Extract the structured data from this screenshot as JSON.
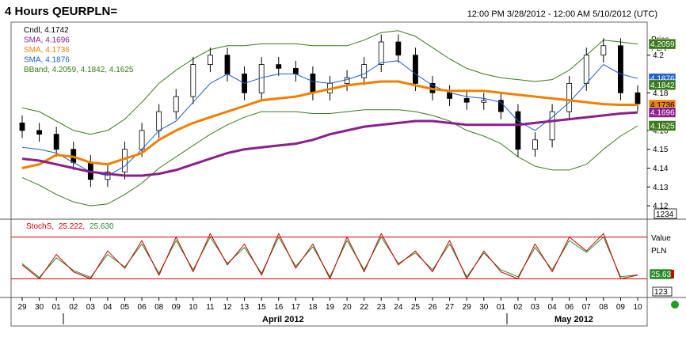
{
  "title": "4 Hours QEURPLN=",
  "date_range": "12:00 PM 3/28/2012 - 12:00 AM 5/10/2012 (UTC)",
  "price_panel": {
    "header_lines": [
      "Price",
      "PLN"
    ],
    "legend": [
      {
        "text": "Cndl, 4.1742",
        "color": "#000000"
      },
      {
        "text": "SMA, 4.1696",
        "color": "#8b1f8b"
      },
      {
        "text": "SMA, 4.1736",
        "color": "#f08000"
      },
      {
        "text": "SMA, 4.1876",
        "color": "#1f5fd0"
      },
      {
        "text": "BBand, 4.2059, 4.1842, 4.1625",
        "color": "#3a7a1a"
      }
    ],
    "y_ticks": [
      "4.2",
      "4.18",
      "4.16",
      "4.15",
      "4.14",
      "4.13",
      "4.12"
    ],
    "y_box": "1234",
    "badges": [
      {
        "text": "4.2059",
        "bg": "#3a7a1a",
        "fg": "#ffffff"
      },
      {
        "text": "4.1876",
        "bg": "#1f5fd0",
        "fg": "#ffffff"
      },
      {
        "text": "4.1842",
        "bg": "#3a7a1a",
        "fg": "#ffffff"
      },
      {
        "text": "4.1736",
        "bg": "#f08000",
        "fg": "#000000"
      },
      {
        "text": "4.1696",
        "bg": "#8b1f8b",
        "fg": "#ffffff"
      },
      {
        "text": "4.1625",
        "bg": "#3a7a1a",
        "fg": "#ffffff"
      }
    ]
  },
  "stoch_panel": {
    "header_lines": [
      "Value",
      "PLN"
    ],
    "legend_prefix": "StochS,",
    "legend_k": "25.222,",
    "legend_d": "25.630",
    "badge": "25.63",
    "y_box": "123"
  },
  "x_axis": {
    "day_labels": [
      "29",
      "30",
      "01",
      "02",
      "03",
      "04",
      "05",
      "06",
      "08",
      "09",
      "10",
      "11",
      "12",
      "13",
      "15",
      "16",
      "17",
      "18",
      "19",
      "20",
      "22",
      "23",
      "24",
      "25",
      "26",
      "27",
      "29",
      "30",
      "01",
      "02",
      "03",
      "04",
      "06",
      "07",
      "08",
      "09",
      "10"
    ],
    "months": [
      "April 2012",
      "May 2012"
    ]
  },
  "colors": {
    "sma_purple": "#8b1f8b",
    "sma_orange": "#f08000",
    "sma_blue": "#1f5fd0",
    "bband_green": "#3a7a1a",
    "stoch_k": "#cc0000",
    "stoch_d": "#2a8a2a",
    "stoch_band": "#cc0000",
    "status_dot": "#1aa01a"
  },
  "chart_data": {
    "type": "line",
    "title": "4 Hours QEURPLN=",
    "ylim": [
      4.115,
      4.215
    ],
    "x": [
      "29",
      "30",
      "01",
      "02",
      "03",
      "04",
      "05",
      "06",
      "08",
      "09",
      "10",
      "11",
      "12",
      "13",
      "15",
      "16",
      "17",
      "18",
      "19",
      "20",
      "22",
      "23",
      "24",
      "25",
      "26",
      "27",
      "29",
      "30",
      "01",
      "02",
      "03",
      "04",
      "06",
      "07",
      "08",
      "09",
      "10"
    ],
    "series": [
      {
        "name": "SMA, 4.1696",
        "values": [
          4.145,
          4.144,
          4.142,
          4.14,
          4.138,
          4.137,
          4.136,
          4.136,
          4.137,
          4.139,
          4.142,
          4.145,
          4.148,
          4.15,
          4.151,
          4.152,
          4.153,
          4.155,
          4.158,
          4.16,
          4.162,
          4.163,
          4.164,
          4.165,
          4.165,
          4.164,
          4.163,
          4.163,
          4.163,
          4.163,
          4.164,
          4.165,
          4.166,
          4.167,
          4.168,
          4.169,
          4.1696
        ]
      },
      {
        "name": "SMA, 4.1736",
        "values": [
          4.14,
          4.142,
          4.147,
          4.146,
          4.143,
          4.142,
          4.145,
          4.148,
          4.155,
          4.16,
          4.164,
          4.167,
          4.17,
          4.173,
          4.176,
          4.177,
          4.178,
          4.18,
          4.182,
          4.184,
          4.185,
          4.186,
          4.186,
          4.184,
          4.182,
          4.181,
          4.181,
          4.181,
          4.18,
          4.179,
          4.178,
          4.177,
          4.176,
          4.175,
          4.174,
          4.1736,
          4.1736
        ]
      },
      {
        "name": "SMA, 4.1876",
        "values": [
          4.151,
          4.15,
          4.148,
          4.143,
          4.138,
          4.136,
          4.141,
          4.15,
          4.16,
          4.165,
          4.175,
          4.185,
          4.19,
          4.185,
          4.188,
          4.19,
          4.19,
          4.186,
          4.185,
          4.187,
          4.19,
          4.196,
          4.197,
          4.19,
          4.184,
          4.18,
          4.178,
          4.177,
          4.175,
          4.165,
          4.16,
          4.167,
          4.175,
          4.185,
          4.195,
          4.19,
          4.1876
        ]
      },
      {
        "name": "BBand, 4.2059, 4.1842, 4.1625",
        "values": [
          4.172,
          4.17,
          4.165,
          4.16,
          4.158,
          4.16,
          4.166,
          4.175,
          4.185,
          4.192,
          4.198,
          4.203,
          4.205,
          4.205,
          4.206,
          4.206,
          4.206,
          4.205,
          4.205,
          4.205,
          4.208,
          4.212,
          4.213,
          4.21,
          4.204,
          4.198,
          4.193,
          4.19,
          4.188,
          4.187,
          4.186,
          4.187,
          4.192,
          4.2,
          4.208,
          4.207,
          4.2059
        ]
      },
      {
        "name": "BBand lower",
        "values": [
          4.135,
          4.131,
          4.126,
          4.122,
          4.12,
          4.121,
          4.126,
          4.132,
          4.14,
          4.146,
          4.152,
          4.158,
          4.163,
          4.167,
          4.17,
          4.17,
          4.17,
          4.169,
          4.169,
          4.17,
          4.171,
          4.171,
          4.171,
          4.17,
          4.168,
          4.165,
          4.16,
          4.157,
          4.153,
          4.146,
          4.141,
          4.139,
          4.139,
          4.142,
          4.15,
          4.157,
          4.1625
        ]
      },
      {
        "name": "StochS %K",
        "values": [
          40,
          20,
          55,
          30,
          20,
          60,
          35,
          75,
          25,
          80,
          30,
          85,
          40,
          70,
          25,
          85,
          35,
          70,
          20,
          80,
          30,
          85,
          40,
          60,
          30,
          75,
          20,
          60,
          30,
          20,
          70,
          30,
          80,
          60,
          85,
          20,
          25.222
        ]
      },
      {
        "name": "StochS %D",
        "values": [
          42,
          22,
          50,
          32,
          22,
          55,
          37,
          70,
          28,
          75,
          33,
          80,
          42,
          65,
          28,
          80,
          38,
          66,
          23,
          75,
          33,
          80,
          42,
          57,
          33,
          70,
          23,
          57,
          33,
          23,
          65,
          33,
          75,
          58,
          80,
          23,
          25.63
        ]
      }
    ],
    "candles": {
      "name": "Cndl, 4.1742",
      "close": [
        4.16,
        4.158,
        4.15,
        4.143,
        4.134,
        4.138,
        4.15,
        4.16,
        4.17,
        4.178,
        4.195,
        4.2,
        4.19,
        4.18,
        4.195,
        4.193,
        4.19,
        4.18,
        4.185,
        4.188,
        4.195,
        4.207,
        4.2,
        4.185,
        4.18,
        4.177,
        4.175,
        4.176,
        4.17,
        4.15,
        4.155,
        4.17,
        4.185,
        4.2,
        4.205,
        4.18,
        4.1742
      ]
    },
    "stoch_levels": [
      80,
      20
    ]
  }
}
